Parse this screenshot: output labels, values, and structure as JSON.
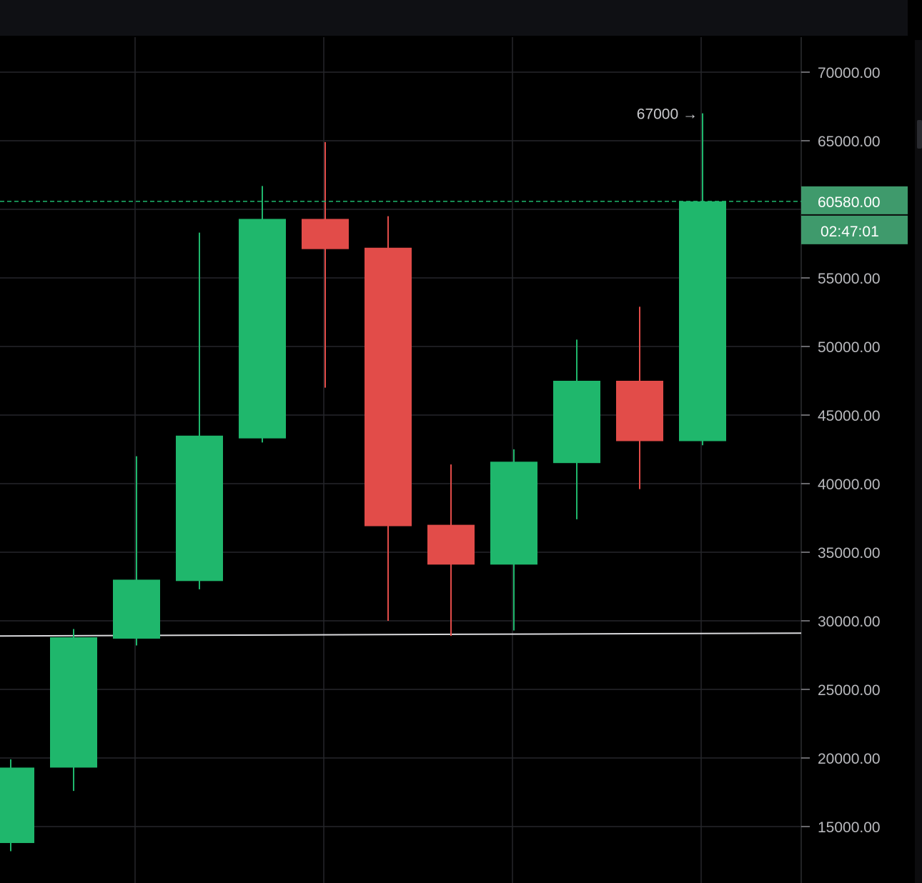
{
  "chart_data": {
    "type": "candlestick",
    "y_axis_ticks": [
      70000,
      65000,
      60000,
      55000,
      50000,
      45000,
      40000,
      35000,
      30000,
      25000,
      20000,
      15000
    ],
    "ylim": [
      12000,
      73000
    ],
    "grid": true,
    "candles": [
      {
        "open": 13800,
        "high": 19900,
        "low": 13200,
        "close": 19300
      },
      {
        "open": 19300,
        "high": 29400,
        "low": 17600,
        "close": 28800
      },
      {
        "open": 28700,
        "high": 42000,
        "low": 28200,
        "close": 33000
      },
      {
        "open": 32900,
        "high": 58300,
        "low": 32300,
        "close": 43500
      },
      {
        "open": 43300,
        "high": 61700,
        "low": 43000,
        "close": 59300
      },
      {
        "open": 59300,
        "high": 64900,
        "low": 47000,
        "close": 57100
      },
      {
        "open": 57200,
        "high": 59500,
        "low": 30000,
        "close": 36900
      },
      {
        "open": 37000,
        "high": 41400,
        "low": 28900,
        "close": 34100
      },
      {
        "open": 34100,
        "high": 42500,
        "low": 29300,
        "close": 41600
      },
      {
        "open": 41500,
        "high": 50500,
        "low": 37400,
        "close": 47500
      },
      {
        "open": 47500,
        "high": 52900,
        "low": 39600,
        "close": 43100
      },
      {
        "open": 43100,
        "high": 67000,
        "low": 42800,
        "close": 60580
      }
    ],
    "current_price_label": "60580.00",
    "countdown_label": "02:47:01",
    "high_annotation": "67000 →",
    "horizontal_line_value": 29000,
    "colors": {
      "up": "#1fb76c",
      "down": "#e24c49",
      "grid": "#25262a",
      "price_badge": "#3f9a6c",
      "price_line": "#1fb76c",
      "support_line": "#d9d9dc"
    }
  }
}
